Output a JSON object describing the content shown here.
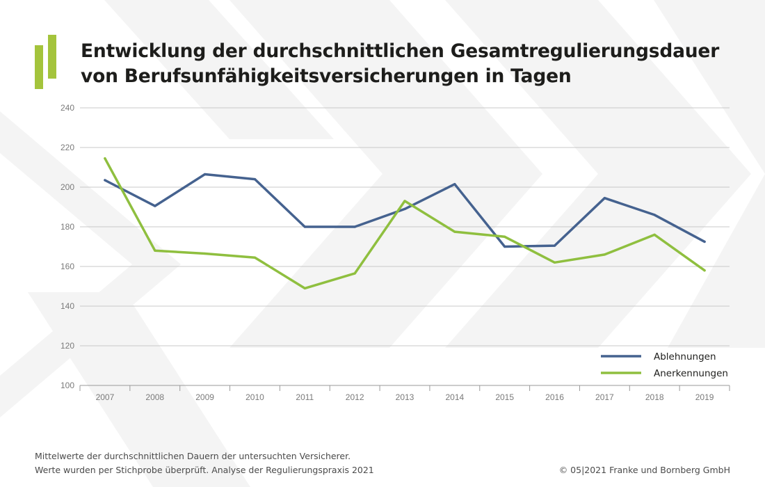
{
  "colors": {
    "ablehnungen": "#45628f",
    "anerkennungen": "#8fbf3f",
    "logo": "#a4c43c",
    "grid": "#c8c8c8",
    "axis": "#9a9a9a"
  },
  "title_lines": [
    "Entwicklung der durchschnittlichen Gesamtregulierungsdauer",
    "von Berufsunfähigkeitsversicherungen in Tagen"
  ],
  "footnote_lines": [
    "Mittelwerte der durchschnittlichen Dauern der untersuchten Versicherer.",
    "Werte wurden per Stichprobe überprüft. Analyse der Regulierungspraxis 2021"
  ],
  "copyright": "© 05|2021 Franke und Bornberg GmbH",
  "chart_data": {
    "type": "line",
    "title": "Entwicklung der durchschnittlichen Gesamtregulierungsdauer von Berufsunfähigkeitsversicherungen in Tagen",
    "xlabel": "",
    "ylabel": "",
    "x": [
      "2007",
      "2008",
      "2009",
      "2010",
      "2011",
      "2012",
      "2013",
      "2014",
      "2015",
      "2016",
      "2017",
      "2018",
      "2019"
    ],
    "yticks": [
      "100",
      "120",
      "140",
      "160",
      "180",
      "200",
      "220",
      "240"
    ],
    "ylim": [
      100,
      240
    ],
    "grid": true,
    "legend_position": "bottom-right",
    "series": [
      {
        "name": "Ablehnungen",
        "color": "#45628f",
        "values": [
          203.5,
          190.5,
          206.5,
          204,
          180,
          180,
          189,
          201.5,
          170,
          170.5,
          194.5,
          186,
          172.5
        ]
      },
      {
        "name": "Anerkennungen",
        "color": "#8fbf3f",
        "values": [
          214.5,
          168,
          166.5,
          164.5,
          149,
          156.5,
          193,
          177.5,
          175,
          162,
          166,
          176,
          158
        ]
      }
    ]
  }
}
